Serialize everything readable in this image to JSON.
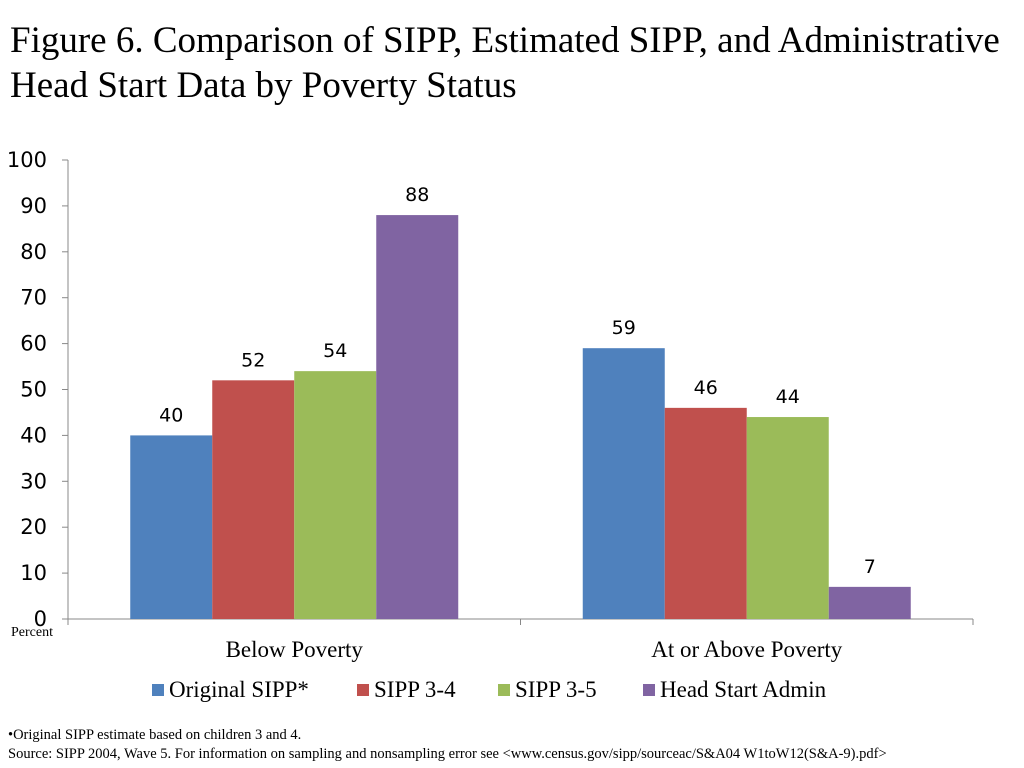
{
  "title": "Figure 6. Comparison of SIPP, Estimated SIPP, and Administrative Head Start Data by Poverty Status",
  "chart_data": {
    "type": "bar",
    "title": "Figure 6. Comparison of SIPP, Estimated SIPP, and Administrative Head Start Data by Poverty Status",
    "categories": [
      "Below Poverty",
      "At or Above Poverty"
    ],
    "series": [
      {
        "name": "Original SIPP*",
        "color": "#4F81BD",
        "values": [
          40,
          59
        ]
      },
      {
        "name": "SIPP 3-4",
        "color": "#C0504D",
        "values": [
          52,
          46
        ]
      },
      {
        "name": "SIPP 3-5",
        "color": "#9BBB59",
        "values": [
          54,
          44
        ]
      },
      {
        "name": "Head Start Admin",
        "color": "#8064A2",
        "values": [
          88,
          7
        ]
      }
    ],
    "ylabel": "Percent",
    "ylim": [
      0,
      100
    ],
    "yticks": [
      0,
      10,
      20,
      30,
      40,
      50,
      60,
      70,
      80,
      90,
      100
    ],
    "grid": false,
    "legend": "bottom"
  },
  "footnotes": {
    "note": "•Original SIPP estimate based on children 3 and 4.",
    "source": "Source: SIPP 2004, Wave 5. For information on sampling and nonsampling error  see <www.census.gov/sipp/sourceac/S&A04 W1toW12(S&A-9).pdf>"
  }
}
